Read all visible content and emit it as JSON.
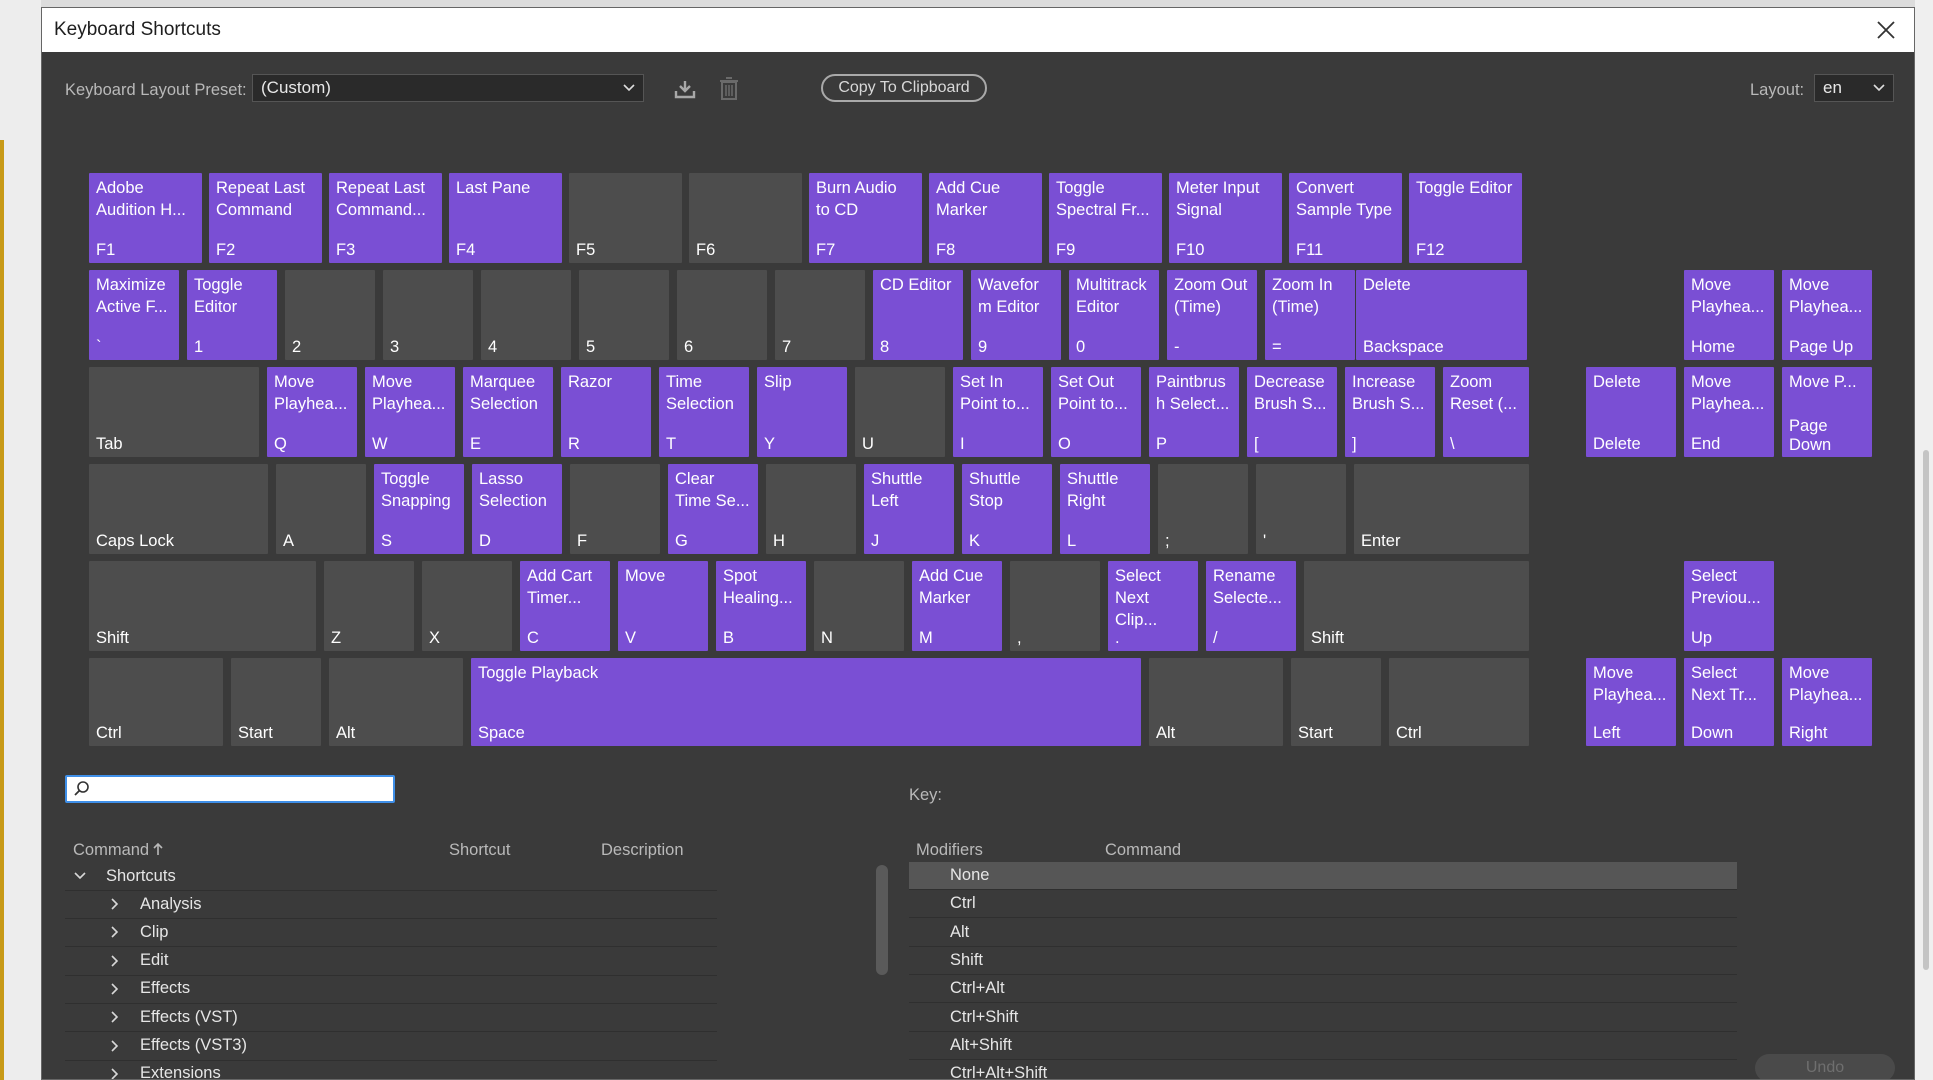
{
  "dialog": {
    "title": "Keyboard Shortcuts",
    "preset_label": "Keyboard Layout Preset:",
    "preset_value": "(Custom)",
    "copy_button": "Copy To Clipboard",
    "layout_label": "Layout:",
    "layout_value": "en",
    "search_placeholder": "",
    "key_label": "Key:",
    "undo_button": "Undo"
  },
  "keyboard": {
    "row_f": [
      {
        "cmd": "Adobe\nAudition H...",
        "key": "F1",
        "bound": true
      },
      {
        "cmd": "Repeat Last\nCommand",
        "key": "F2",
        "bound": true
      },
      {
        "cmd": "Repeat Last\nCommand...",
        "key": "F3",
        "bound": true
      },
      {
        "cmd": "Last Pane",
        "key": "F4",
        "bound": true
      },
      {
        "cmd": "",
        "key": "F5",
        "bound": false
      },
      {
        "cmd": "",
        "key": "F6",
        "bound": false
      },
      {
        "cmd": "Burn Audio\nto CD",
        "key": "F7",
        "bound": true
      },
      {
        "cmd": "Add Cue\nMarker",
        "key": "F8",
        "bound": true
      },
      {
        "cmd": "Toggle\nSpectral Fr...",
        "key": "F9",
        "bound": true
      },
      {
        "cmd": "Meter Input\nSignal",
        "key": "F10",
        "bound": true
      },
      {
        "cmd": "Convert\nSample Type",
        "key": "F11",
        "bound": true
      },
      {
        "cmd": "Toggle Editor",
        "key": "F12",
        "bound": true
      }
    ],
    "row_num": [
      {
        "cmd": "Maximize\nActive F...",
        "key": "`",
        "bound": true
      },
      {
        "cmd": "Toggle\nEditor",
        "key": "1",
        "bound": true
      },
      {
        "cmd": "",
        "key": "2",
        "bound": false
      },
      {
        "cmd": "",
        "key": "3",
        "bound": false
      },
      {
        "cmd": "",
        "key": "4",
        "bound": false
      },
      {
        "cmd": "",
        "key": "5",
        "bound": false
      },
      {
        "cmd": "",
        "key": "6",
        "bound": false
      },
      {
        "cmd": "",
        "key": "7",
        "bound": false
      },
      {
        "cmd": "CD Editor",
        "key": "8",
        "bound": true
      },
      {
        "cmd": "Wavefor\nm Editor",
        "key": "9",
        "bound": true
      },
      {
        "cmd": "Multitrack\nEditor",
        "key": "0",
        "bound": true
      },
      {
        "cmd": "Zoom Out\n(Time)",
        "key": "-",
        "bound": true
      },
      {
        "cmd": "Zoom In\n(Time)",
        "key": "=",
        "bound": true
      },
      {
        "cmd": "Delete",
        "key": "Backspace",
        "bound": true
      }
    ],
    "row_q": [
      {
        "cmd": "",
        "key": "Tab",
        "bound": false
      },
      {
        "cmd": "Move\nPlayhea...",
        "key": "Q",
        "bound": true
      },
      {
        "cmd": "Move\nPlayhea...",
        "key": "W",
        "bound": true
      },
      {
        "cmd": "Marquee\nSelection",
        "key": "E",
        "bound": true
      },
      {
        "cmd": "Razor",
        "key": "R",
        "bound": true
      },
      {
        "cmd": "Time\nSelection",
        "key": "T",
        "bound": true
      },
      {
        "cmd": "Slip",
        "key": "Y",
        "bound": true
      },
      {
        "cmd": "",
        "key": "U",
        "bound": false
      },
      {
        "cmd": "Set In\nPoint to...",
        "key": "I",
        "bound": true
      },
      {
        "cmd": "Set Out\nPoint to...",
        "key": "O",
        "bound": true
      },
      {
        "cmd": "Paintbrus\nh Select...",
        "key": "P",
        "bound": true
      },
      {
        "cmd": "Decrease\nBrush S...",
        "key": "[",
        "bound": true
      },
      {
        "cmd": "Increase\nBrush S...",
        "key": "]",
        "bound": true
      },
      {
        "cmd": "Zoom\nReset (...",
        "key": "\\",
        "bound": true
      }
    ],
    "row_a": [
      {
        "cmd": "",
        "key": "Caps Lock",
        "bound": false
      },
      {
        "cmd": "",
        "key": "A",
        "bound": false
      },
      {
        "cmd": "Toggle\nSnapping",
        "key": "S",
        "bound": true
      },
      {
        "cmd": "Lasso\nSelection",
        "key": "D",
        "bound": true
      },
      {
        "cmd": "",
        "key": "F",
        "bound": false
      },
      {
        "cmd": "Clear\nTime Se...",
        "key": "G",
        "bound": true
      },
      {
        "cmd": "",
        "key": "H",
        "bound": false
      },
      {
        "cmd": "Shuttle\nLeft",
        "key": "J",
        "bound": true
      },
      {
        "cmd": "Shuttle\nStop",
        "key": "K",
        "bound": true
      },
      {
        "cmd": "Shuttle\nRight",
        "key": "L",
        "bound": true
      },
      {
        "cmd": "",
        "key": ";",
        "bound": false
      },
      {
        "cmd": "",
        "key": "'",
        "bound": false
      },
      {
        "cmd": "",
        "key": "Enter",
        "bound": false
      }
    ],
    "row_z": [
      {
        "cmd": "",
        "key": "Shift",
        "bound": false
      },
      {
        "cmd": "",
        "key": "Z",
        "bound": false
      },
      {
        "cmd": "",
        "key": "X",
        "bound": false
      },
      {
        "cmd": "Add Cart\nTimer...",
        "key": "C",
        "bound": true
      },
      {
        "cmd": "Move",
        "key": "V",
        "bound": true
      },
      {
        "cmd": "Spot\nHealing...",
        "key": "B",
        "bound": true
      },
      {
        "cmd": "",
        "key": "N",
        "bound": false
      },
      {
        "cmd": "Add Cue\nMarker",
        "key": "M",
        "bound": true
      },
      {
        "cmd": "",
        "key": ",",
        "bound": false
      },
      {
        "cmd": "Select\nNext\nClip...",
        "key": ".",
        "bound": true
      },
      {
        "cmd": "Rename\nSelecte...",
        "key": "/",
        "bound": true
      },
      {
        "cmd": "",
        "key": "Shift",
        "bound": false
      }
    ],
    "row_space": [
      {
        "cmd": "",
        "key": "Ctrl",
        "bound": false
      },
      {
        "cmd": "",
        "key": "Start",
        "bound": false
      },
      {
        "cmd": "",
        "key": "Alt",
        "bound": false
      },
      {
        "cmd": "Toggle Playback",
        "key": "Space",
        "bound": true
      },
      {
        "cmd": "",
        "key": "Alt",
        "bound": false
      },
      {
        "cmd": "",
        "key": "Start",
        "bound": false
      },
      {
        "cmd": "",
        "key": "Ctrl",
        "bound": false
      }
    ],
    "nav": [
      {
        "cmd": "Move\nPlayhea...",
        "key": "Home",
        "bound": true
      },
      {
        "cmd": "Move\nPlayhea...",
        "key": "Page Up",
        "bound": true
      },
      {
        "cmd": "Delete",
        "key": "Delete",
        "bound": true
      },
      {
        "cmd": "Move\nPlayhea...",
        "key": "End",
        "bound": true
      },
      {
        "cmd": "Move P...",
        "key": "Page\nDown",
        "bound": true
      },
      {
        "cmd": "Select\nPreviou...",
        "key": "Up",
        "bound": true
      },
      {
        "cmd": "Move\nPlayhea...",
        "key": "Left",
        "bound": true
      },
      {
        "cmd": "Select\nNext Tr...",
        "key": "Down",
        "bound": true
      },
      {
        "cmd": "Move\nPlayhea...",
        "key": "Right",
        "bound": true
      }
    ]
  },
  "commands_table": {
    "headers": {
      "command": "Command",
      "shortcut": "Shortcut",
      "description": "Description"
    },
    "root": "Shortcuts",
    "groups": [
      "Analysis",
      "Clip",
      "Edit",
      "Effects",
      "Effects (VST)",
      "Effects (VST3)",
      "Extensions"
    ]
  },
  "modifiers_table": {
    "headers": {
      "modifiers": "Modifiers",
      "command": "Command"
    },
    "rows": [
      "None",
      "Ctrl",
      "Alt",
      "Shift",
      "Ctrl+Alt",
      "Ctrl+Shift",
      "Alt+Shift",
      "Ctrl+Alt+Shift"
    ]
  },
  "colors": {
    "bound_key": "#7a4fd4",
    "free_key": "#4d4d4d",
    "dialog_bg": "#3a3a3a"
  }
}
